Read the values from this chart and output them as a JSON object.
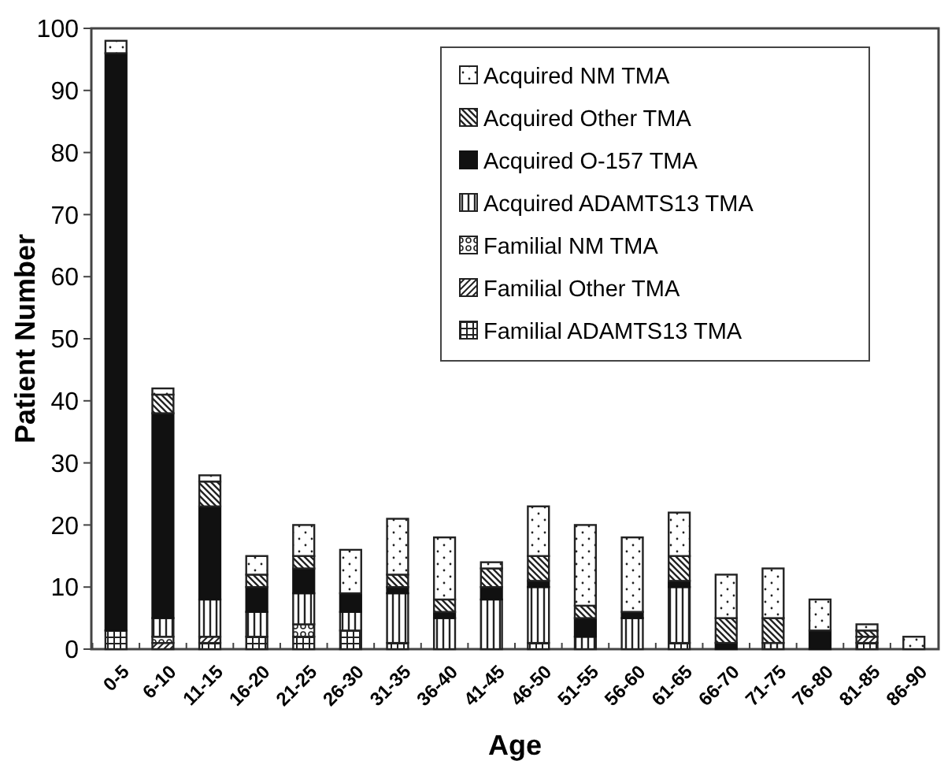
{
  "chart_data": {
    "type": "bar",
    "stacked": true,
    "xlabel": "Age",
    "ylabel": "Patient Number",
    "categories": [
      "0-5",
      "6-10",
      "11-15",
      "16-20",
      "21-25",
      "26-30",
      "31-35",
      "36-40",
      "41-45",
      "46-50",
      "51-55",
      "56-60",
      "61-65",
      "66-70",
      "71-75",
      "76-80",
      "81-85",
      "86-90"
    ],
    "series": [
      {
        "name": "Familial ADAMTS13 TMA",
        "color": "#222222",
        "values": [
          3,
          0,
          1,
          2,
          2,
          3,
          1,
          0,
          0,
          1,
          0,
          0,
          1,
          0,
          0,
          0,
          1,
          0
        ]
      },
      {
        "name": "Familial Other TMA",
        "color": "#222222",
        "values": [
          0,
          1,
          1,
          0,
          0,
          0,
          0,
          0,
          0,
          0,
          0,
          0,
          0,
          0,
          0,
          0,
          1,
          0
        ]
      },
      {
        "name": "Familial NM TMA",
        "color": "#222222",
        "values": [
          0,
          1,
          0,
          0,
          2,
          0,
          0,
          0,
          0,
          0,
          0,
          0,
          0,
          0,
          0,
          0,
          0,
          0
        ]
      },
      {
        "name": "Acquired ADAMTS13 TMA",
        "color": "#222222",
        "values": [
          0,
          3,
          6,
          4,
          5,
          3,
          8,
          5,
          8,
          9,
          2,
          5,
          9,
          0,
          1,
          0,
          0,
          0
        ]
      },
      {
        "name": "Acquired O-157 TMA",
        "color": "#111111",
        "values": [
          93,
          33,
          15,
          4,
          4,
          3,
          1,
          1,
          2,
          1,
          3,
          1,
          1,
          1,
          0,
          3,
          0,
          0
        ]
      },
      {
        "name": "Acquired Other TMA",
        "color": "#222222",
        "values": [
          0,
          3,
          4,
          2,
          2,
          0,
          2,
          2,
          3,
          4,
          2,
          0,
          4,
          4,
          4,
          0,
          1,
          0
        ]
      },
      {
        "name": "Acquired NM TMA",
        "color": "#222222",
        "values": [
          2,
          1,
          1,
          3,
          5,
          7,
          9,
          10,
          1,
          8,
          13,
          12,
          7,
          7,
          8,
          5,
          1,
          2
        ]
      }
    ],
    "ylim": [
      0,
      100
    ],
    "yticks": [
      0,
      10,
      20,
      30,
      40,
      50,
      60,
      70,
      80,
      90,
      100
    ],
    "grid": false,
    "legend": "top right"
  }
}
